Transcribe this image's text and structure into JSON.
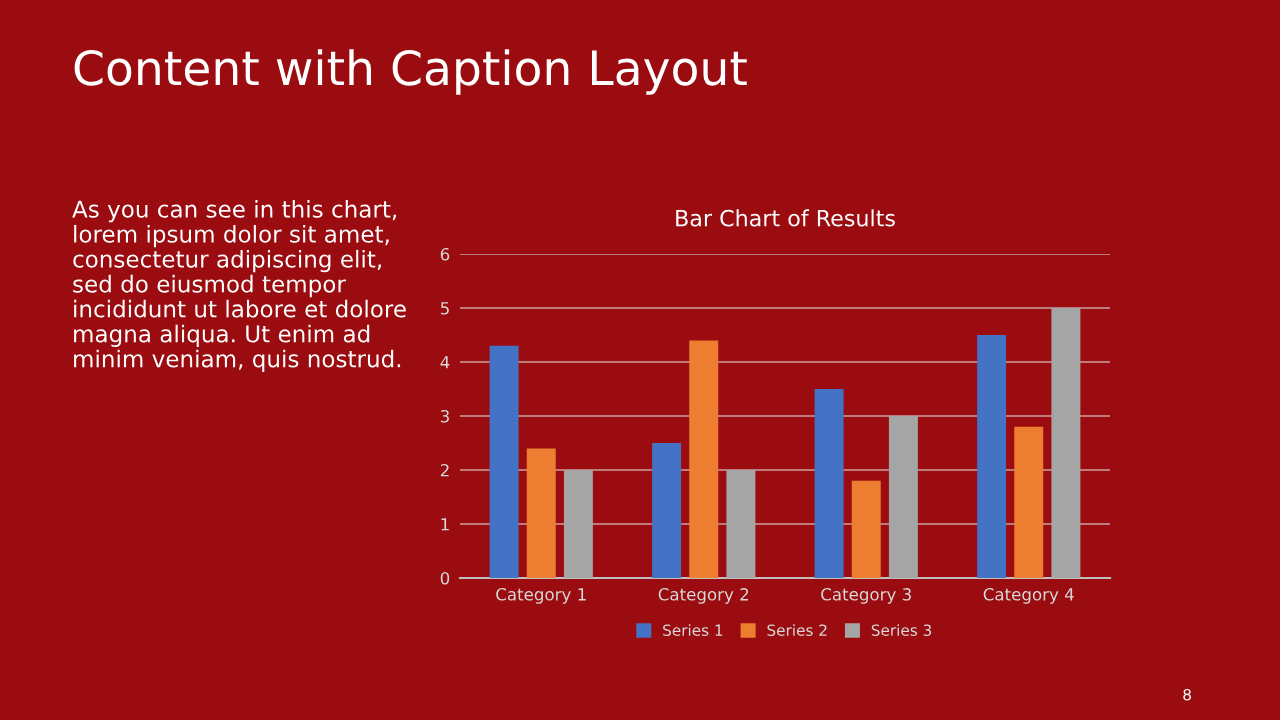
{
  "chart_data": {
    "type": "bar",
    "title": "Bar Chart of Results",
    "categories": [
      "Category 1",
      "Category 2",
      "Category 3",
      "Category 4"
    ],
    "series": [
      {
        "name": "Series 1",
        "color": "#4472c4",
        "values": [
          4.3,
          2.5,
          3.5,
          4.5
        ]
      },
      {
        "name": "Series 2",
        "color": "#ed7d31",
        "values": [
          2.4,
          4.4,
          1.8,
          2.8
        ]
      },
      {
        "name": "Series 3",
        "color": "#a5a5a5",
        "values": [
          2,
          2,
          3,
          5
        ]
      }
    ],
    "ylim": [
      0,
      6
    ],
    "yticks": [
      0,
      1,
      2,
      3,
      4,
      5,
      6
    ],
    "grid": "y",
    "legend": "bottom",
    "annotations": [
      "Content with Caption Layout",
      "As you can see in this chart,\nlorem ipsum dolor sit amet,\nconsectetur adipiscing elit,\nsed do eiusmod tempor\nincididunt ut labore et dolore\nmagna aliqua. Ut enim ad\nminim veniam, quis nostrud.",
      "8"
    ]
  }
}
